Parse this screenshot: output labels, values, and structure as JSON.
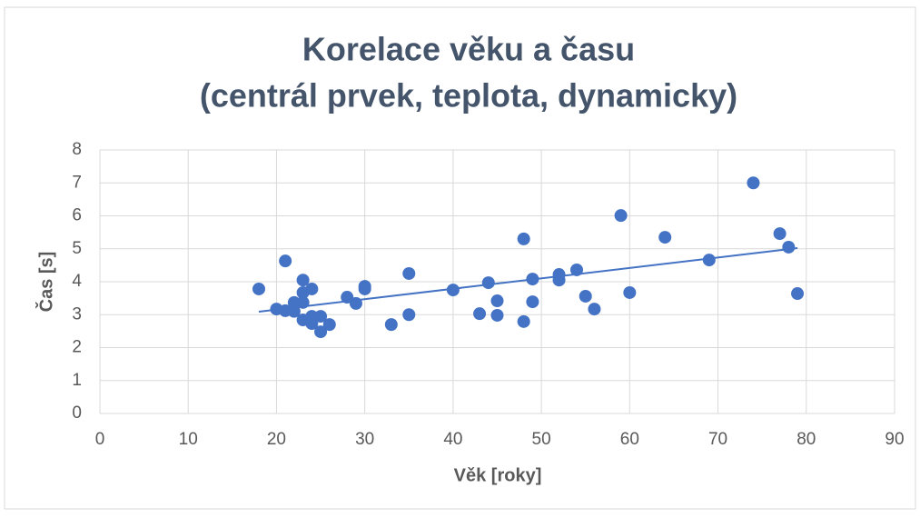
{
  "chart_data": {
    "type": "scatter",
    "title": [
      "Korelace věku a času",
      "(centrál prvek, teplota, dynamicky)"
    ],
    "xlabel": "Věk [roky]",
    "ylabel": "Čas [s]",
    "color": "#4472c4",
    "grid": true,
    "xlim": [
      0,
      90
    ],
    "xticks": [
      0,
      10,
      20,
      30,
      40,
      50,
      60,
      70,
      80,
      90
    ],
    "ylim": [
      0,
      8
    ],
    "yticks": [
      0,
      1,
      2,
      3,
      4,
      5,
      6,
      7,
      8
    ],
    "x": [
      18,
      21,
      20,
      21,
      22,
      22,
      23,
      23,
      23,
      23,
      24,
      24,
      24,
      25,
      25,
      26,
      28,
      29,
      30,
      30,
      33,
      35,
      35,
      40,
      43,
      44,
      45,
      45,
      48,
      48,
      49,
      49,
      52,
      52,
      54,
      55,
      56,
      59,
      60,
      64,
      69,
      74,
      77,
      78,
      79
    ],
    "values": [
      3.78,
      4.63,
      3.17,
      3.12,
      3.37,
      3.1,
      4.05,
      3.67,
      3.37,
      2.84,
      3.78,
      2.95,
      2.73,
      2.95,
      2.48,
      2.7,
      3.53,
      3.34,
      3.86,
      3.78,
      2.7,
      4.25,
      3.0,
      3.75,
      3.03,
      3.97,
      3.42,
      2.98,
      5.3,
      2.79,
      4.08,
      3.39,
      4.22,
      4.05,
      4.36,
      3.56,
      3.17,
      6.01,
      3.67,
      5.35,
      4.66,
      7.0,
      5.46,
      5.05,
      3.64
    ],
    "trendline": {
      "x": [
        18,
        79
      ],
      "values": [
        3.09,
        5.02
      ]
    }
  }
}
